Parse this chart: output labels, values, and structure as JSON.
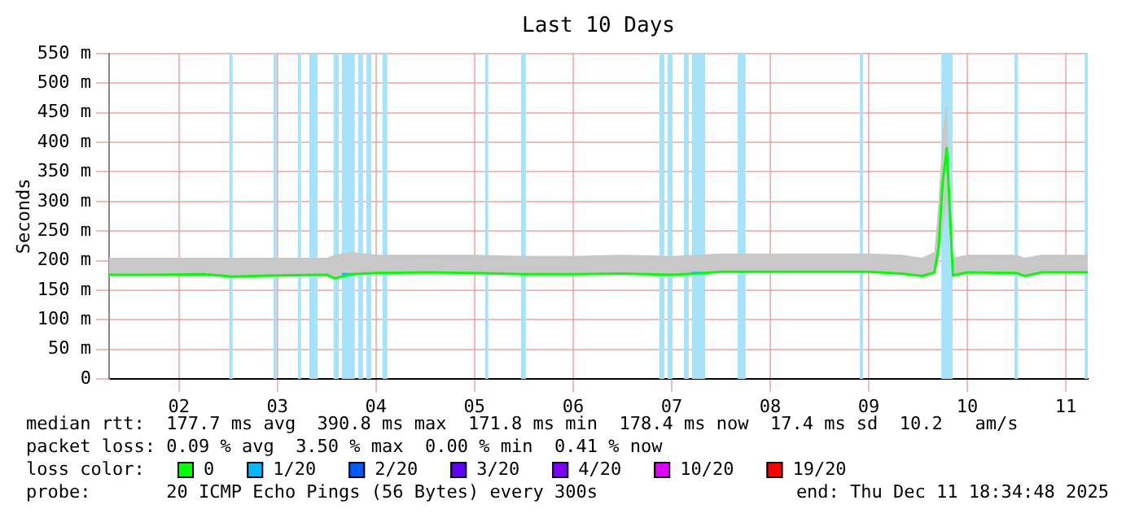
{
  "chart_data": {
    "type": "line",
    "title": "Last 10 Days",
    "ylabel": "Seconds",
    "legend_title": "loss color:",
    "x": [
      "2025-12-01T07:00",
      "2025-12-01T18:00",
      "2025-12-02T06:00",
      "2025-12-02T13:00",
      "2025-12-03T00:00",
      "2025-12-03T12:00",
      "2025-12-03T14:00",
      "2025-12-03T18:00",
      "2025-12-04T00:00",
      "2025-12-04T12:00",
      "2025-12-05T00:00",
      "2025-12-05T12:00",
      "2025-12-06T00:00",
      "2025-12-06T12:00",
      "2025-12-07T00:00",
      "2025-12-07T06:00",
      "2025-12-07T12:00",
      "2025-12-08T00:00",
      "2025-12-08T12:00",
      "2025-12-09T00:00",
      "2025-12-09T08:00",
      "2025-12-09T13:00",
      "2025-12-09T16:00",
      "2025-12-09T17:00",
      "2025-12-09T18:00",
      "2025-12-09T19:00",
      "2025-12-09T20:30",
      "2025-12-10T00:00",
      "2025-12-10T12:00",
      "2025-12-10T14:00",
      "2025-12-10T18:00",
      "2025-12-11T05:20"
    ],
    "series": [
      {
        "name": "0",
        "color": "#00ff00",
        "values": [
          176,
          176,
          177,
          173,
          175,
          176,
          170,
          177,
          179,
          180,
          179,
          177,
          177,
          178,
          176,
          178,
          181,
          181,
          181,
          181,
          178,
          174,
          180,
          222,
          333,
          390,
          175,
          180,
          179,
          174,
          180,
          180
        ],
        "lower": [
          176,
          176,
          177,
          173,
          175,
          176,
          170,
          177,
          179,
          180,
          179,
          177,
          177,
          178,
          176,
          178,
          181,
          181,
          181,
          181,
          178,
          174,
          180,
          200,
          250,
          300,
          175,
          180,
          179,
          174,
          180,
          180
        ],
        "upper": [
          205,
          205,
          205,
          205,
          205,
          205,
          210,
          215,
          210,
          210,
          210,
          208,
          208,
          210,
          208,
          210,
          212,
          212,
          212,
          212,
          210,
          205,
          215,
          300,
          420,
          467,
          205,
          210,
          210,
          205,
          210,
          210
        ]
      },
      {
        "name": "1/20",
        "color": "#00b8ff",
        "x": [
          "2025-12-03T15:40",
          "2025-12-03T18:50",
          "2025-12-05T00:00",
          "2025-12-07T04:55",
          "2025-12-07T08:10"
        ],
        "values": [
          177,
          177,
          null,
          179,
          179
        ]
      },
      {
        "name": "2/20",
        "color": "#0059ff",
        "values": [
          null,
          null,
          null,
          null,
          null,
          null,
          null,
          null,
          null,
          null,
          null,
          null,
          null,
          null,
          null,
          null,
          null,
          null,
          null,
          null,
          null,
          null,
          null,
          null,
          null,
          null,
          null,
          null,
          null,
          null,
          null,
          null
        ]
      },
      {
        "name": "3/20",
        "color": "#5e00ff",
        "values": [
          null,
          null,
          null,
          null,
          null,
          null,
          null,
          null,
          null,
          null,
          null,
          null,
          null,
          null,
          null,
          null,
          null,
          null,
          null,
          null,
          null,
          null,
          null,
          null,
          null,
          null,
          null,
          null,
          null,
          null,
          null,
          null
        ]
      },
      {
        "name": "4/20",
        "color": "#7e00ff",
        "values": [
          null,
          null,
          null,
          null,
          null,
          null,
          null,
          null,
          null,
          null,
          null,
          null,
          null,
          null,
          null,
          null,
          null,
          null,
          null,
          null,
          null,
          null,
          null,
          null,
          null,
          null,
          null,
          null,
          null,
          null,
          null,
          null
        ]
      },
      {
        "name": "10/20",
        "color": "#dd00ff",
        "values": [
          null,
          null,
          null,
          null,
          null,
          null,
          null,
          null,
          null,
          null,
          null,
          null,
          null,
          null,
          null,
          null,
          null,
          null,
          null,
          null,
          null,
          null,
          null,
          null,
          null,
          null,
          null,
          null,
          null,
          null,
          null,
          null
        ]
      },
      {
        "name": "19/20",
        "color": "#ff0000",
        "values": [
          null,
          null,
          null,
          null,
          null,
          null,
          null,
          null,
          null,
          null,
          null,
          null,
          null,
          null,
          null,
          null,
          null,
          null,
          null,
          null,
          null,
          null,
          null,
          null,
          null,
          null,
          null,
          null,
          null,
          null,
          null,
          null
        ]
      }
    ],
    "xlim": [
      "2025-12-01T07:00",
      "2025-12-11T05:20"
    ],
    "xticks": [
      {
        "value": "2025-12-02",
        "label": "02"
      },
      {
        "value": "2025-12-03",
        "label": "03"
      },
      {
        "value": "2025-12-04",
        "label": "04"
      },
      {
        "value": "2025-12-05",
        "label": "05"
      },
      {
        "value": "2025-12-06",
        "label": "06"
      },
      {
        "value": "2025-12-07",
        "label": "07"
      },
      {
        "value": "2025-12-08",
        "label": "08"
      },
      {
        "value": "2025-12-09",
        "label": "09"
      },
      {
        "value": "2025-12-10",
        "label": "10"
      },
      {
        "value": "2025-12-11",
        "label": "11"
      }
    ],
    "ylim": [
      0,
      550
    ],
    "yticks": [
      0,
      {
        "value": 50,
        "label": "50 m"
      },
      {
        "value": 100,
        "label": "100 m"
      },
      {
        "value": 150,
        "label": "150 m"
      },
      {
        "value": 200,
        "label": "200 m"
      },
      {
        "value": 250,
        "label": "250 m"
      },
      {
        "value": 300,
        "label": "300 m"
      },
      {
        "value": 350,
        "label": "350 m"
      },
      {
        "value": 400,
        "label": "400 m"
      },
      {
        "value": 450,
        "label": "450 m"
      },
      {
        "value": 500,
        "label": "500 m"
      },
      {
        "value": 550,
        "label": "550 m"
      }
    ],
    "grid": true,
    "legend": "bottom",
    "bands": [
      {
        "axis": "x",
        "from": "2025-12-02T12:15",
        "to": "2025-12-02T13:05",
        "color": "#a6e3fa"
      },
      {
        "axis": "x",
        "from": "2025-12-02T23:00",
        "to": "2025-12-02T23:50",
        "color": "#a6e3fa"
      },
      {
        "axis": "x",
        "from": "2025-12-03T05:00",
        "to": "2025-12-03T05:45",
        "color": "#a6e3fa"
      },
      {
        "axis": "x",
        "from": "2025-12-03T07:45",
        "to": "2025-12-03T09:45",
        "color": "#a6e3fa"
      },
      {
        "axis": "x",
        "from": "2025-12-03T13:40",
        "to": "2025-12-03T14:55",
        "color": "#a6e3fa"
      },
      {
        "axis": "x",
        "from": "2025-12-03T15:40",
        "to": "2025-12-03T18:50",
        "color": "#a6e3fa"
      },
      {
        "axis": "x",
        "from": "2025-12-03T19:40",
        "to": "2025-12-03T20:50",
        "color": "#a6e3fa"
      },
      {
        "axis": "x",
        "from": "2025-12-03T21:40",
        "to": "2025-12-03T22:50",
        "color": "#a6e3fa"
      },
      {
        "axis": "x",
        "from": "2025-12-04T01:35",
        "to": "2025-12-04T02:45",
        "color": "#a6e3fa"
      },
      {
        "axis": "x",
        "from": "2025-12-05T02:35",
        "to": "2025-12-05T03:20",
        "color": "#a6e3fa"
      },
      {
        "axis": "x",
        "from": "2025-12-05T11:20",
        "to": "2025-12-05T12:30",
        "color": "#a6e3fa"
      },
      {
        "axis": "x",
        "from": "2025-12-06T21:00",
        "to": "2025-12-06T22:15",
        "color": "#a6e3fa"
      },
      {
        "axis": "x",
        "from": "2025-12-06T23:00",
        "to": "2025-12-07T00:10",
        "color": "#a6e3fa"
      },
      {
        "axis": "x",
        "from": "2025-12-07T03:00",
        "to": "2025-12-07T04:10",
        "color": "#a6e3fa"
      },
      {
        "axis": "x",
        "from": "2025-12-07T04:55",
        "to": "2025-12-07T08:10",
        "color": "#a6e3fa"
      },
      {
        "axis": "x",
        "from": "2025-12-07T16:05",
        "to": "2025-12-07T18:00",
        "color": "#a6e3fa"
      },
      {
        "axis": "x",
        "from": "2025-12-08T21:50",
        "to": "2025-12-08T22:35",
        "color": "#a6e3fa"
      },
      {
        "axis": "x",
        "from": "2025-12-09T17:40",
        "to": "2025-12-09T20:25",
        "color": "#a6e3fa"
      },
      {
        "axis": "x",
        "from": "2025-12-10T11:30",
        "to": "2025-12-10T12:20",
        "color": "#a6e3fa"
      },
      {
        "axis": "x",
        "from": "2025-12-11T04:35",
        "to": "2025-12-11T05:20",
        "color": "#a6e3fa"
      }
    ],
    "annotations": [
      "median rtt:  177.7 ms avg  390.8 ms max  171.8 ms min  178.4 ms now  17.4 ms sd  10.2   am/s",
      "packet loss: 0.09 % avg  3.50 % max  0.00 % min  0.41 % now",
      "probe:       20 ICMP Echo Pings (56 Bytes) every 300s",
      "end: Thu Dec 11 18:34:48 2025"
    ]
  }
}
